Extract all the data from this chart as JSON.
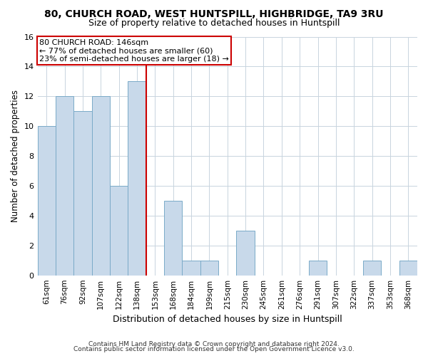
{
  "title": "80, CHURCH ROAD, WEST HUNTSPILL, HIGHBRIDGE, TA9 3RU",
  "subtitle": "Size of property relative to detached houses in Huntspill",
  "xlabel": "Distribution of detached houses by size in Huntspill",
  "ylabel": "Number of detached properties",
  "bin_labels": [
    "61sqm",
    "76sqm",
    "92sqm",
    "107sqm",
    "122sqm",
    "138sqm",
    "153sqm",
    "168sqm",
    "184sqm",
    "199sqm",
    "215sqm",
    "230sqm",
    "245sqm",
    "261sqm",
    "276sqm",
    "291sqm",
    "307sqm",
    "322sqm",
    "337sqm",
    "353sqm",
    "368sqm"
  ],
  "bin_values": [
    10,
    12,
    11,
    12,
    6,
    13,
    0,
    5,
    1,
    1,
    0,
    3,
    0,
    0,
    0,
    1,
    0,
    0,
    1,
    0,
    1
  ],
  "bar_color": "#c8d9ea",
  "bar_edge_color": "#7aaac8",
  "vline_x_index": 5.5,
  "vline_color": "#cc0000",
  "annotation_line1": "80 CHURCH ROAD: 146sqm",
  "annotation_line2": "← 77% of detached houses are smaller (60)",
  "annotation_line3": "23% of semi-detached houses are larger (18) →",
  "annotation_box_color": "#ffffff",
  "annotation_box_edge": "#cc0000",
  "ylim": [
    0,
    16
  ],
  "yticks": [
    0,
    2,
    4,
    6,
    8,
    10,
    12,
    14,
    16
  ],
  "footer_line1": "Contains HM Land Registry data © Crown copyright and database right 2024.",
  "footer_line2": "Contains public sector information licensed under the Open Government Licence v3.0.",
  "background_color": "#ffffff",
  "grid_color": "#c8d4de"
}
